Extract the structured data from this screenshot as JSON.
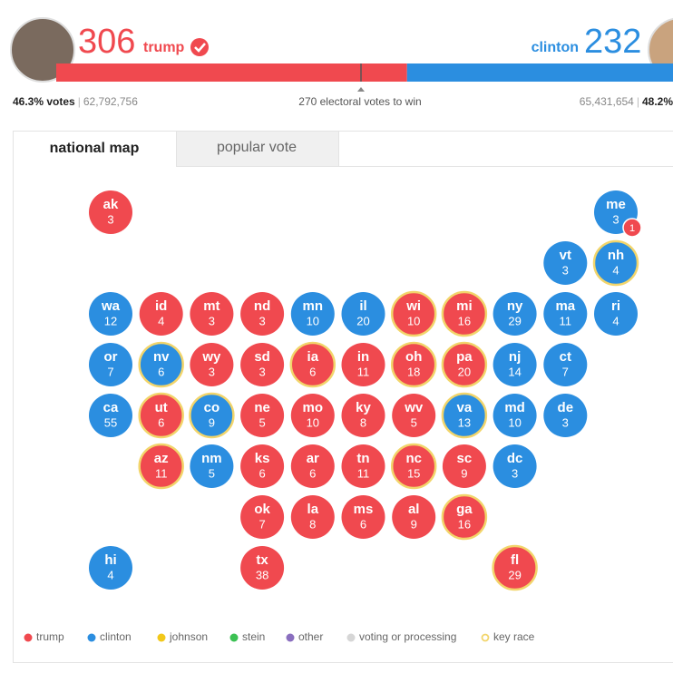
{
  "header": {
    "trump": {
      "name": "trump",
      "electoral_votes": 306,
      "color": "#f0494f",
      "vote_share": "46.3% votes",
      "popular_votes": "62,792,756"
    },
    "clinton": {
      "name": "clinton",
      "electoral_votes": 232,
      "color": "#2b8ee0",
      "vote_share": "48.2%",
      "popular_votes": "65,431,654"
    },
    "threshold": "270 electoral votes to win"
  },
  "tabs": [
    "national map",
    "popular vote"
  ],
  "states": [
    {
      "abbr": "ak",
      "votes": 3,
      "party": "trump"
    },
    {
      "abbr": "me",
      "votes": 3,
      "party": "clinton",
      "split": {
        "party": "trump",
        "votes": 1
      }
    },
    {
      "abbr": "vt",
      "votes": 3,
      "party": "clinton"
    },
    {
      "abbr": "nh",
      "votes": 4,
      "party": "clinton",
      "key_race": true
    },
    {
      "abbr": "wa",
      "votes": 12,
      "party": "clinton"
    },
    {
      "abbr": "id",
      "votes": 4,
      "party": "trump"
    },
    {
      "abbr": "mt",
      "votes": 3,
      "party": "trump"
    },
    {
      "abbr": "nd",
      "votes": 3,
      "party": "trump"
    },
    {
      "abbr": "mn",
      "votes": 10,
      "party": "clinton"
    },
    {
      "abbr": "il",
      "votes": 20,
      "party": "clinton"
    },
    {
      "abbr": "wi",
      "votes": 10,
      "party": "trump",
      "key_race": true
    },
    {
      "abbr": "mi",
      "votes": 16,
      "party": "trump",
      "key_race": true
    },
    {
      "abbr": "ny",
      "votes": 29,
      "party": "clinton"
    },
    {
      "abbr": "ma",
      "votes": 11,
      "party": "clinton"
    },
    {
      "abbr": "ri",
      "votes": 4,
      "party": "clinton"
    },
    {
      "abbr": "or",
      "votes": 7,
      "party": "clinton"
    },
    {
      "abbr": "nv",
      "votes": 6,
      "party": "clinton",
      "key_race": true
    },
    {
      "abbr": "wy",
      "votes": 3,
      "party": "trump"
    },
    {
      "abbr": "sd",
      "votes": 3,
      "party": "trump"
    },
    {
      "abbr": "ia",
      "votes": 6,
      "party": "trump",
      "key_race": true
    },
    {
      "abbr": "in",
      "votes": 11,
      "party": "trump"
    },
    {
      "abbr": "oh",
      "votes": 18,
      "party": "trump",
      "key_race": true
    },
    {
      "abbr": "pa",
      "votes": 20,
      "party": "trump",
      "key_race": true
    },
    {
      "abbr": "nj",
      "votes": 14,
      "party": "clinton"
    },
    {
      "abbr": "ct",
      "votes": 7,
      "party": "clinton"
    },
    {
      "abbr": "ca",
      "votes": 55,
      "party": "clinton"
    },
    {
      "abbr": "ut",
      "votes": 6,
      "party": "trump",
      "key_race": true
    },
    {
      "abbr": "co",
      "votes": 9,
      "party": "clinton",
      "key_race": true
    },
    {
      "abbr": "ne",
      "votes": 5,
      "party": "trump"
    },
    {
      "abbr": "mo",
      "votes": 10,
      "party": "trump"
    },
    {
      "abbr": "ky",
      "votes": 8,
      "party": "trump"
    },
    {
      "abbr": "wv",
      "votes": 5,
      "party": "trump"
    },
    {
      "abbr": "va",
      "votes": 13,
      "party": "clinton",
      "key_race": true
    },
    {
      "abbr": "md",
      "votes": 10,
      "party": "clinton"
    },
    {
      "abbr": "de",
      "votes": 3,
      "party": "clinton"
    },
    {
      "abbr": "az",
      "votes": 11,
      "party": "trump",
      "key_race": true
    },
    {
      "abbr": "nm",
      "votes": 5,
      "party": "clinton"
    },
    {
      "abbr": "ks",
      "votes": 6,
      "party": "trump"
    },
    {
      "abbr": "ar",
      "votes": 6,
      "party": "trump"
    },
    {
      "abbr": "tn",
      "votes": 11,
      "party": "trump"
    },
    {
      "abbr": "nc",
      "votes": 15,
      "party": "trump",
      "key_race": true
    },
    {
      "abbr": "sc",
      "votes": 9,
      "party": "trump"
    },
    {
      "abbr": "dc",
      "votes": 3,
      "party": "clinton"
    },
    {
      "abbr": "ok",
      "votes": 7,
      "party": "trump"
    },
    {
      "abbr": "la",
      "votes": 8,
      "party": "trump"
    },
    {
      "abbr": "ms",
      "votes": 6,
      "party": "trump"
    },
    {
      "abbr": "al",
      "votes": 9,
      "party": "trump"
    },
    {
      "abbr": "ga",
      "votes": 16,
      "party": "trump",
      "key_race": true
    },
    {
      "abbr": "hi",
      "votes": 4,
      "party": "clinton"
    },
    {
      "abbr": "tx",
      "votes": 38,
      "party": "trump"
    },
    {
      "abbr": "fl",
      "votes": 29,
      "party": "trump",
      "key_race": true
    }
  ],
  "legend": [
    {
      "name": "trump",
      "color": "#f0494f"
    },
    {
      "name": "clinton",
      "color": "#2b8ee0"
    },
    {
      "name": "johnson",
      "color": "#f2c81a"
    },
    {
      "name": "stein",
      "color": "#3cc153"
    },
    {
      "name": "other",
      "color": "#8a6fbf"
    },
    {
      "name": "voting or processing",
      "color": "#d6d6d6"
    },
    {
      "name": "key race",
      "color": "#f2d56b",
      "ring": true
    }
  ]
}
